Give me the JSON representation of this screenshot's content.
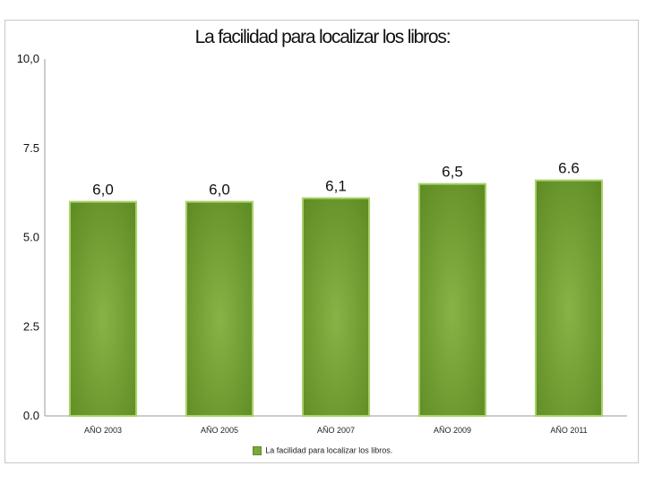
{
  "chart_data": {
    "type": "bar",
    "title": "La facilidad para localizar los libros:",
    "categories": [
      "AÑO 2003",
      "AÑO 2005",
      "AÑO 2007",
      "AÑO 2009",
      "AÑO 2011"
    ],
    "series": [
      {
        "name": "La facilidad para localizar los libros.",
        "values": [
          6.0,
          6.0,
          6.1,
          6.5,
          6.6
        ]
      }
    ],
    "data_labels": [
      "6,0",
      "6,0",
      "6,1",
      "6,5",
      "6.6"
    ],
    "ytick_labels": [
      "0.0",
      "2.5",
      "5.0",
      "7.5",
      "10,0"
    ],
    "yticks": [
      0,
      2.5,
      5,
      7.5,
      10
    ],
    "ylim": [
      0,
      10
    ],
    "grid": false,
    "legend_position": "bottom",
    "colors": {
      "bar": "#6e9a30",
      "bar_highlight": "#86b446",
      "bar_border": "#a9d26a"
    }
  }
}
